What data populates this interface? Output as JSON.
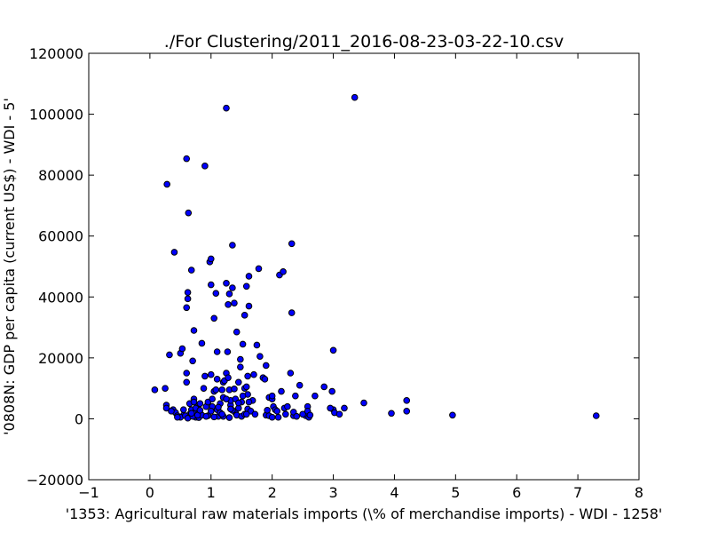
{
  "chart_data": {
    "type": "scatter",
    "title": "./For Clustering/2011_2016-08-23-03-22-10.csv",
    "xlabel": "'1353: Agricultural raw materials imports  (\\% of merchandise imports) - WDI - 1258'",
    "ylabel": "'0808N: GDP per capita  (current US$) - WDI - 5'",
    "xlim": [
      -1,
      8
    ],
    "ylim": [
      -20000,
      120000
    ],
    "xticks": [
      "−1",
      "0",
      "1",
      "2",
      "3",
      "4",
      "5",
      "6",
      "7",
      "8"
    ],
    "yticks": [
      "−20000",
      "0",
      "20000",
      "40000",
      "60000",
      "80000",
      "100000",
      "120000"
    ],
    "grid": false,
    "marker_color": "#0000ff",
    "points": [
      [
        0.08,
        9500
      ],
      [
        0.25,
        10000
      ],
      [
        0.28,
        77000
      ],
      [
        0.27,
        4500
      ],
      [
        0.27,
        3500
      ],
      [
        0.32,
        21000
      ],
      [
        0.38,
        3000
      ],
      [
        0.42,
        2000
      ],
      [
        0.45,
        1000
      ],
      [
        0.4,
        54700
      ],
      [
        0.5,
        21500
      ],
      [
        0.53,
        23000
      ],
      [
        0.55,
        1200
      ],
      [
        0.5,
        500
      ],
      [
        0.6,
        85400
      ],
      [
        0.6,
        15000
      ],
      [
        0.6,
        12000
      ],
      [
        0.6,
        36500
      ],
      [
        0.62,
        39400
      ],
      [
        0.62,
        41500
      ],
      [
        0.63,
        67600
      ],
      [
        0.65,
        5000
      ],
      [
        0.65,
        1500
      ],
      [
        0.68,
        3000
      ],
      [
        0.68,
        48800
      ],
      [
        0.7,
        19000
      ],
      [
        0.72,
        29000
      ],
      [
        0.72,
        6500
      ],
      [
        0.75,
        500
      ],
      [
        0.75,
        2500
      ],
      [
        0.78,
        4000
      ],
      [
        0.8,
        2000
      ],
      [
        0.82,
        5000
      ],
      [
        0.85,
        24800
      ],
      [
        0.88,
        10000
      ],
      [
        0.9,
        83000
      ],
      [
        0.9,
        14000
      ],
      [
        0.92,
        4000
      ],
      [
        0.95,
        1000
      ],
      [
        0.98,
        51500
      ],
      [
        1.0,
        52500
      ],
      [
        1.0,
        44000
      ],
      [
        1.0,
        14500
      ],
      [
        1.02,
        4000
      ],
      [
        1.05,
        9000
      ],
      [
        1.05,
        33000
      ],
      [
        1.08,
        41200
      ],
      [
        1.1,
        22000
      ],
      [
        1.1,
        13000
      ],
      [
        1.1,
        3000
      ],
      [
        1.12,
        800
      ],
      [
        1.15,
        5000
      ],
      [
        1.18,
        9500
      ],
      [
        1.2,
        12000
      ],
      [
        1.2,
        7000
      ],
      [
        1.22,
        12500
      ],
      [
        1.25,
        15000
      ],
      [
        1.25,
        44500
      ],
      [
        1.25,
        102000
      ],
      [
        1.27,
        22000
      ],
      [
        1.28,
        37500
      ],
      [
        1.3,
        41000
      ],
      [
        1.3,
        9500
      ],
      [
        1.32,
        4500
      ],
      [
        1.32,
        6000
      ],
      [
        1.35,
        43000
      ],
      [
        1.35,
        57000
      ],
      [
        1.38,
        38000
      ],
      [
        1.4,
        2000
      ],
      [
        1.42,
        28500
      ],
      [
        1.45,
        12000
      ],
      [
        1.48,
        19500
      ],
      [
        1.48,
        17000
      ],
      [
        1.5,
        5500
      ],
      [
        1.52,
        24500
      ],
      [
        1.55,
        10000
      ],
      [
        1.55,
        34000
      ],
      [
        1.58,
        43500
      ],
      [
        1.6,
        14000
      ],
      [
        1.6,
        8000
      ],
      [
        1.62,
        37000
      ],
      [
        1.62,
        46800
      ],
      [
        1.68,
        6000
      ],
      [
        1.7,
        14500
      ],
      [
        1.75,
        24200
      ],
      [
        1.78,
        49300
      ],
      [
        1.8,
        20500
      ],
      [
        1.85,
        13500
      ],
      [
        1.88,
        13000
      ],
      [
        1.9,
        17500
      ],
      [
        1.9,
        1200
      ],
      [
        1.95,
        7000
      ],
      [
        2.0,
        6500
      ],
      [
        2.02,
        4000
      ],
      [
        2.05,
        3000
      ],
      [
        2.1,
        500
      ],
      [
        2.12,
        47200
      ],
      [
        2.15,
        9000
      ],
      [
        2.18,
        48300
      ],
      [
        2.2,
        3500
      ],
      [
        2.25,
        4000
      ],
      [
        2.3,
        15000
      ],
      [
        2.32,
        57500
      ],
      [
        2.32,
        34800
      ],
      [
        2.35,
        1000
      ],
      [
        2.38,
        7500
      ],
      [
        2.45,
        11000
      ],
      [
        2.55,
        1000
      ],
      [
        2.58,
        4000
      ],
      [
        2.6,
        500
      ],
      [
        2.7,
        7500
      ],
      [
        2.85,
        10500
      ],
      [
        2.98,
        9000
      ],
      [
        3.0,
        22500
      ],
      [
        3.0,
        3000
      ],
      [
        3.02,
        2000
      ],
      [
        3.1,
        1500
      ],
      [
        3.18,
        3500
      ],
      [
        3.35,
        105500
      ],
      [
        3.5,
        5200
      ],
      [
        3.95,
        1800
      ],
      [
        4.2,
        6000
      ],
      [
        4.2,
        2500
      ],
      [
        4.95,
        1200
      ],
      [
        7.3,
        1000
      ],
      [
        0.58,
        1000
      ],
      [
        0.62,
        200
      ],
      [
        0.7,
        800
      ],
      [
        0.75,
        3500
      ],
      [
        0.8,
        400
      ],
      [
        0.85,
        1200
      ],
      [
        0.95,
        5500
      ],
      [
        1.0,
        2500
      ],
      [
        1.05,
        600
      ],
      [
        1.08,
        9500
      ],
      [
        1.15,
        2000
      ],
      [
        1.2,
        800
      ],
      [
        1.25,
        6500
      ],
      [
        1.3,
        400
      ],
      [
        1.35,
        2800
      ],
      [
        1.38,
        9800
      ],
      [
        1.42,
        1200
      ],
      [
        1.45,
        3500
      ],
      [
        1.5,
        800
      ],
      [
        1.52,
        7500
      ],
      [
        1.55,
        1500
      ],
      [
        1.58,
        10500
      ],
      [
        1.6,
        3200
      ],
      [
        1.65,
        2500
      ],
      [
        1.72,
        1500
      ],
      [
        1.92,
        2800
      ],
      [
        1.95,
        1000
      ],
      [
        2.0,
        7500
      ],
      [
        2.08,
        2500
      ],
      [
        2.22,
        1500
      ],
      [
        2.35,
        2200
      ],
      [
        2.4,
        800
      ],
      [
        2.5,
        1500
      ],
      [
        2.58,
        2500
      ],
      [
        2.62,
        1200
      ],
      [
        2.95,
        3500
      ],
      [
        0.35,
        2500
      ],
      [
        0.45,
        500
      ],
      [
        0.55,
        3000
      ],
      [
        0.68,
        1800
      ],
      [
        0.72,
        5500
      ],
      [
        0.78,
        1200
      ],
      [
        0.82,
        2800
      ],
      [
        0.92,
        800
      ],
      [
        1.02,
        6500
      ],
      [
        1.12,
        3800
      ],
      [
        1.18,
        1500
      ],
      [
        1.28,
        13500
      ],
      [
        1.32,
        3200
      ],
      [
        1.4,
        6500
      ],
      [
        1.45,
        5200
      ],
      [
        1.58,
        1500
      ],
      [
        1.62,
        5500
      ],
      [
        2.0,
        500
      ]
    ]
  }
}
